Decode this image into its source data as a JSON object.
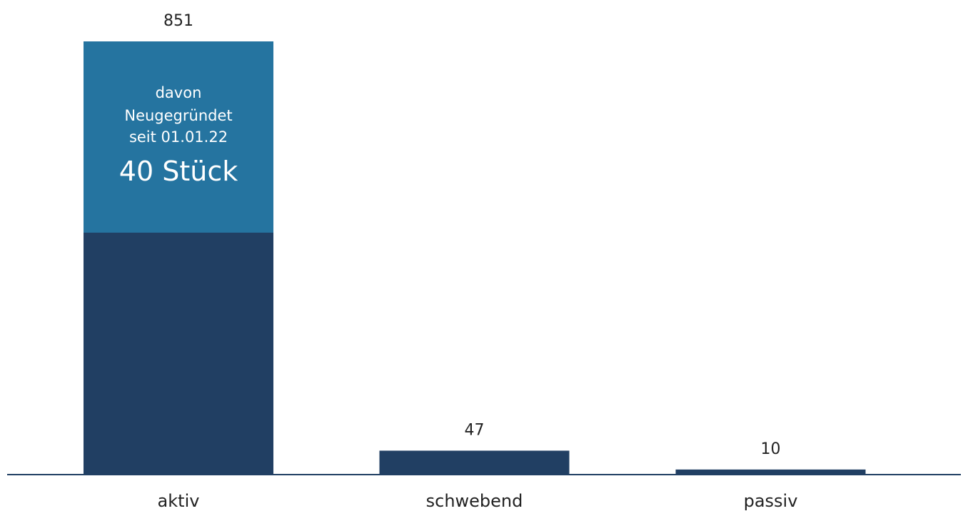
{
  "chart_data": {
    "type": "bar",
    "title": "",
    "xlabel": "",
    "ylabel": "",
    "ylim": [
      0,
      851
    ],
    "grid": false,
    "categories": [
      "aktiv",
      "schwebend",
      "passiv"
    ],
    "values": [
      851,
      47,
      10
    ],
    "value_labels": [
      "851",
      "47",
      "10"
    ],
    "bar_color": "#213f63",
    "highlight": {
      "category": "aktiv",
      "color": "#2574a0",
      "lines": [
        "davon",
        "Neugegründet",
        "seit 01.01.22"
      ],
      "value_text": "40 Stück"
    }
  }
}
